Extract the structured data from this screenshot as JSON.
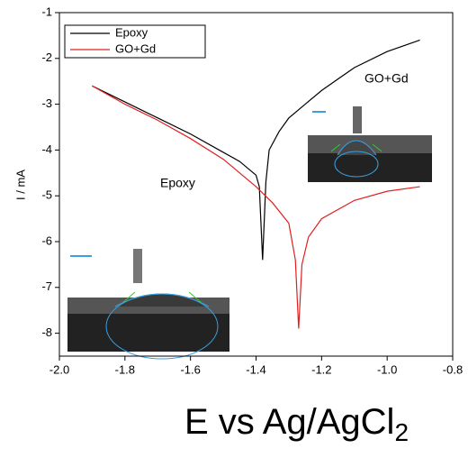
{
  "chart_data": {
    "type": "line",
    "x_label": "E vs Ag/AgCl",
    "x_label_subscript": "2",
    "y_label": "I / mA",
    "xlim": [
      -2.0,
      -0.8
    ],
    "xticks": [
      {
        "value": -2,
        "label": "-2.0"
      },
      -1.8,
      -1.6,
      -1.4,
      -1.2,
      {
        "value": -1,
        "label": "-1.0"
      },
      -0.8
    ],
    "ylim": [
      -8.5,
      -1
    ],
    "yticks": [
      -1,
      -2,
      -3,
      -4,
      -5,
      -6,
      -7,
      -8
    ],
    "grid": false,
    "legend": "upper left",
    "annotations": [
      "Epoxy",
      "GO+Gd"
    ],
    "series": [
      {
        "name": "Epoxy",
        "color": "#000000",
        "x": [
          -1.9,
          -1.8,
          -1.7,
          -1.6,
          -1.5,
          -1.45,
          -1.4,
          -1.39,
          -1.38,
          -1.37,
          -1.36,
          -1.33,
          -1.3,
          -1.25,
          -1.2,
          -1.1,
          -1.0,
          -0.9
        ],
        "values": [
          -2.6,
          -2.95,
          -3.3,
          -3.65,
          -4.05,
          -4.25,
          -4.55,
          -4.8,
          -6.4,
          -4.7,
          -4.0,
          -3.6,
          -3.3,
          -3.0,
          -2.7,
          -2.2,
          -1.85,
          -1.6
        ]
      },
      {
        "name": "GO+Gd",
        "color": "#e02020",
        "x": [
          -1.9,
          -1.8,
          -1.7,
          -1.6,
          -1.5,
          -1.4,
          -1.35,
          -1.3,
          -1.28,
          -1.27,
          -1.26,
          -1.24,
          -1.2,
          -1.1,
          -1.0,
          -0.9
        ],
        "values": [
          -2.6,
          -3.0,
          -3.35,
          -3.75,
          -4.2,
          -4.8,
          -5.15,
          -5.6,
          -6.4,
          -7.9,
          -6.5,
          -5.9,
          -5.5,
          -5.1,
          -4.9,
          -4.8
        ]
      }
    ]
  }
}
